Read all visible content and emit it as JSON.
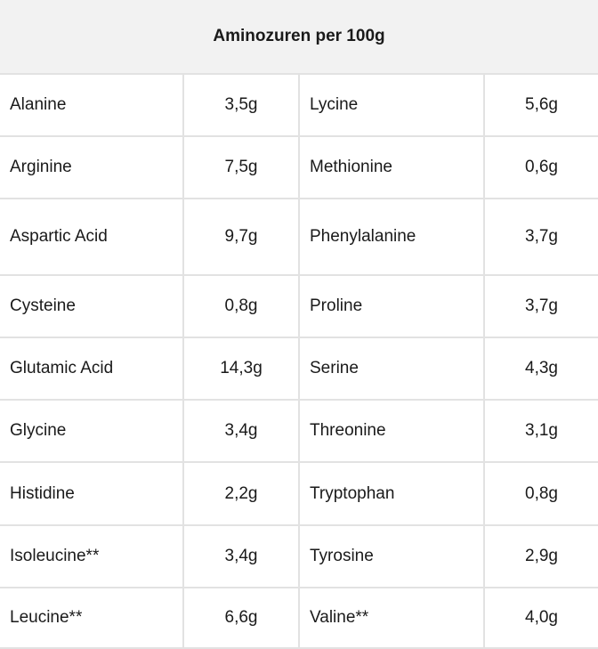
{
  "title": "Aminozuren per 100g",
  "rows": [
    {
      "a": "Alanine",
      "av": "3,5g",
      "b": "Lycine",
      "bv": "5,6g"
    },
    {
      "a": "Arginine",
      "av": "7,5g",
      "b": "Methionine",
      "bv": "0,6g"
    },
    {
      "a": "Aspartic Acid",
      "av": "9,7g",
      "b": "Phenylalanine",
      "bv": "3,7g"
    },
    {
      "a": "Cysteine",
      "av": "0,8g",
      "b": "Proline",
      "bv": "3,7g"
    },
    {
      "a": "Glutamic Acid",
      "av": "14,3g",
      "b": "Serine",
      "bv": "4,3g"
    },
    {
      "a": "Glycine",
      "av": "3,4g",
      "b": "Threonine",
      "bv": "3,1g"
    },
    {
      "a": "Histidine",
      "av": "2,2g",
      "b": "Tryptophan",
      "bv": "0,8g"
    },
    {
      "a": "Isoleucine**",
      "av": "3,4g",
      "b": "Tyrosine",
      "bv": "2,9g"
    },
    {
      "a": "Leucine**",
      "av": "6,6g",
      "b": "Valine**",
      "bv": "4,0g"
    }
  ]
}
